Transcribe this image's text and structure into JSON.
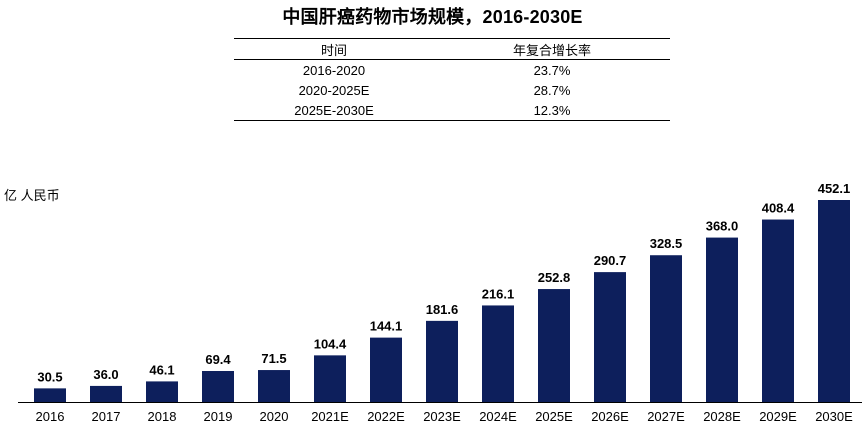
{
  "title": "中国肝癌药物市场规模，2016-2030E",
  "cagr_table": {
    "headers": [
      "时间",
      "年复合增长率"
    ],
    "rows": [
      {
        "period": "2016-2020",
        "rate": "23.7%"
      },
      {
        "period": "2020-2025E",
        "rate": "28.7%"
      },
      {
        "period": "2025E-2030E",
        "rate": "12.3%"
      }
    ]
  },
  "chart_data": {
    "type": "bar",
    "title": "中国肝癌药物市场规模，2016-2030E",
    "ylabel": "亿 人民币",
    "xlabel": "",
    "categories": [
      "2016",
      "2017",
      "2018",
      "2019",
      "2020",
      "2021E",
      "2022E",
      "2023E",
      "2024E",
      "2025E",
      "2026E",
      "2027E",
      "2028E",
      "2029E",
      "2030E"
    ],
    "values": [
      30.5,
      36.0,
      46.1,
      69.4,
      71.5,
      104.4,
      144.1,
      181.6,
      216.1,
      252.8,
      290.7,
      328.5,
      368.0,
      408.4,
      452.1
    ],
    "value_labels": [
      "30.5",
      "36.0",
      "46.1",
      "69.4",
      "71.5",
      "104.4",
      "144.1",
      "181.6",
      "216.1",
      "252.8",
      "290.7",
      "328.5",
      "368.0",
      "408.4",
      "452.1"
    ],
    "ylim": [
      0,
      452.1
    ],
    "bar_color": "#0d1f5c",
    "grid": false
  }
}
